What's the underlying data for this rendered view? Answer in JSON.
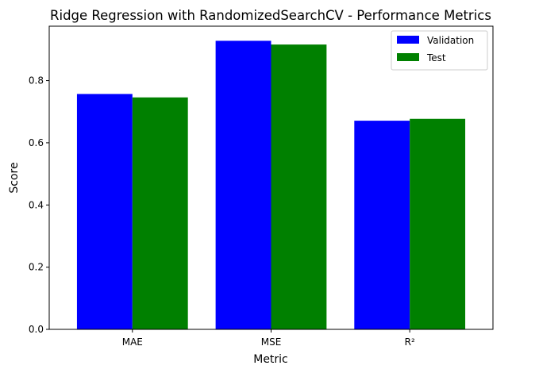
{
  "chart_data": {
    "type": "bar",
    "title": "Ridge Regression with RandomizedSearchCV - Performance Metrics",
    "xlabel": "Metric",
    "ylabel": "Score",
    "categories": [
      "MAE",
      "MSE",
      "R²"
    ],
    "series": [
      {
        "name": "Validation",
        "color": "#0000ff",
        "values": [
          0.757,
          0.928,
          0.671
        ]
      },
      {
        "name": "Test",
        "color": "#008000",
        "values": [
          0.746,
          0.916,
          0.677
        ]
      }
    ],
    "ylim": [
      0,
      0.975
    ],
    "yticks": [
      "0.0",
      "0.2",
      "0.4",
      "0.6",
      "0.8"
    ],
    "legend_position": "top-right",
    "grid": false
  }
}
